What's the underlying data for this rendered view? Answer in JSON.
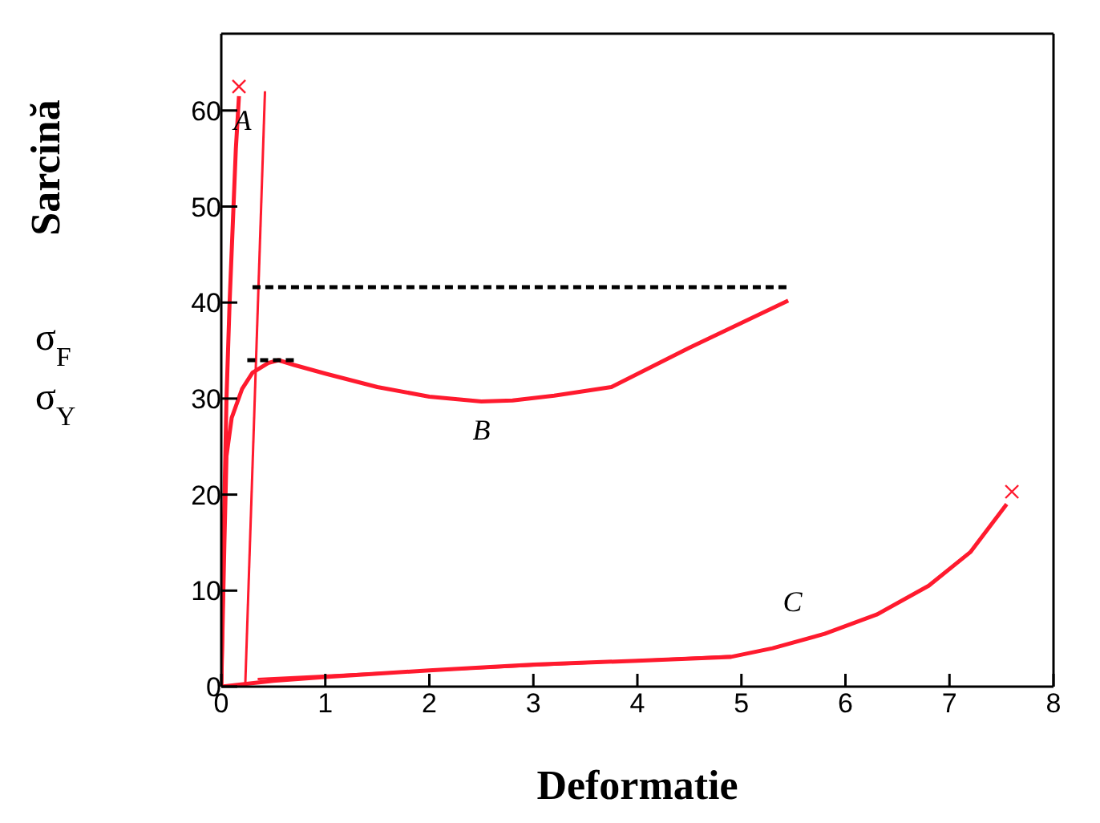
{
  "chart_data": {
    "type": "line",
    "xlabel": "Deformatie",
    "ylabel": "Sarcină",
    "xlim": [
      0,
      8
    ],
    "ylim": [
      0,
      68
    ],
    "xticks": [
      0,
      1,
      2,
      3,
      4,
      5,
      6,
      7,
      8
    ],
    "yticks": [
      0,
      10,
      20,
      30,
      40,
      50,
      60
    ],
    "grid": false,
    "marker": "none",
    "line_style": "solid",
    "series": [
      {
        "color": "#ff1a2e",
        "x": [
          0,
          0.02,
          0.05,
          0.08,
          0.11,
          0.14,
          0.17
        ],
        "values": [
          0,
          14,
          30,
          40,
          48,
          56,
          61.5
        ]
      },
      {
        "color": "#ff1a2e",
        "x": [
          0.23,
          0.42
        ],
        "values": [
          0,
          62
        ]
      },
      {
        "color": "#ff1a2e",
        "x": [
          0,
          0.03,
          0.05,
          0.1,
          0.2,
          0.3,
          0.45,
          0.55,
          0.7,
          1,
          1.5,
          2,
          2.5,
          2.8,
          3.2,
          3.75,
          4.5,
          5.45
        ],
        "values": [
          0,
          15,
          24,
          28,
          31,
          32.7,
          33.7,
          34,
          33.5,
          32.6,
          31.2,
          30.2,
          29.7,
          29.8,
          30.3,
          31.2,
          35.3,
          40.2
        ]
      },
      {
        "color": "#ff1a2e",
        "x": [
          0,
          0.5,
          1,
          2,
          3,
          4,
          4.9,
          5.3,
          5.8,
          6.3,
          6.8,
          7.2,
          7.55
        ],
        "values": [
          0,
          0.6,
          1,
          1.7,
          2.3,
          2.7,
          3.1,
          4,
          5.5,
          7.5,
          10.5,
          14,
          19
        ]
      },
      {
        "color": "#ff1a2e",
        "x": [
          0.35,
          4.9
        ],
        "values": [
          0.8,
          3.2
        ]
      },
      {
        "color": "#000000",
        "line_style": "dashed",
        "x": [
          0.3,
          5.45
        ],
        "values": [
          41.6,
          41.6
        ]
      },
      {
        "color": "#000000",
        "line_style": "dashed",
        "x": [
          0.25,
          0.72
        ],
        "values": [
          34,
          34
        ]
      },
      {
        "type": "scatter",
        "marker": "cross",
        "color": "#ff1a2e",
        "x": [
          0.17,
          7.6
        ],
        "values": [
          62.5,
          20.3
        ]
      }
    ],
    "annotations": [
      {
        "text": "A",
        "x": 0.42,
        "y": 62
      },
      {
        "text": "B",
        "x": 2.5,
        "y": 29.7
      },
      {
        "text": "C",
        "x": 5.8,
        "y": 5.5
      },
      "σ$_{F}$",
      "σ$_{Y}$"
    ]
  }
}
